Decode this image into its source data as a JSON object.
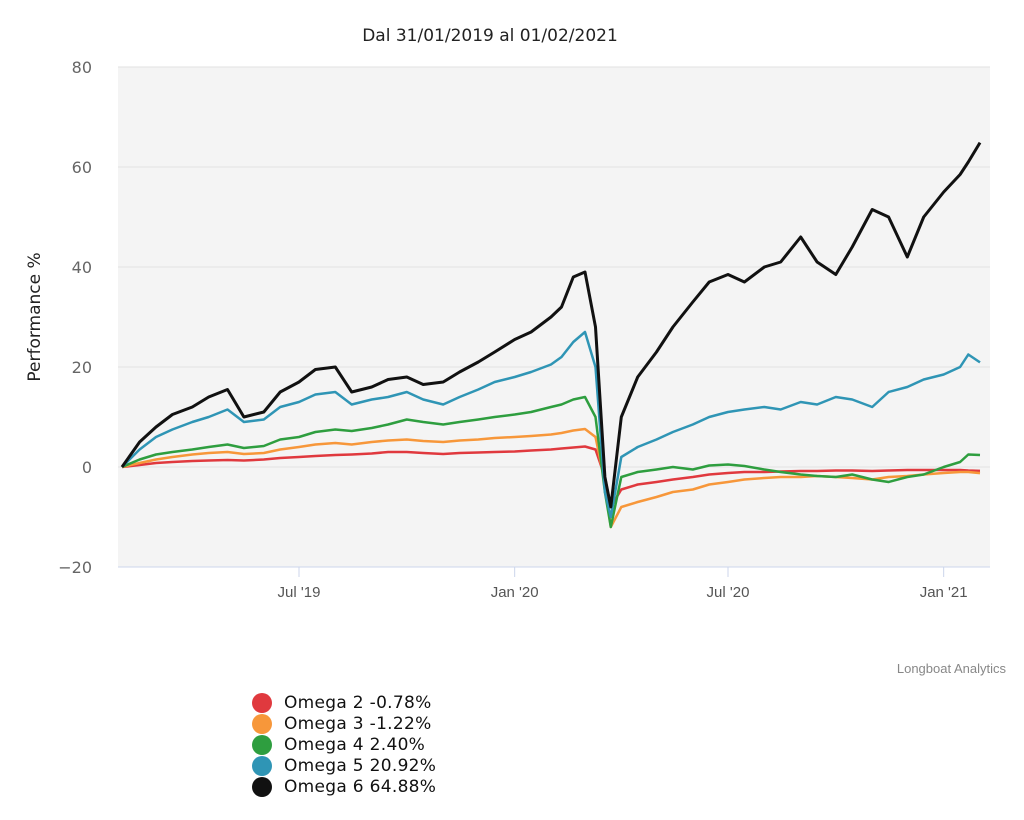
{
  "chart_data": {
    "type": "line",
    "title": "Dal 31/01/2019 al 01/02/2021",
    "xlabel": "",
    "ylabel": "Performance %",
    "ylim": [
      -20,
      80
    ],
    "yticks": [
      -20,
      0,
      20,
      40,
      60,
      80
    ],
    "ytick_labels": [
      "−20",
      "0",
      "20",
      "40",
      "60",
      "80"
    ],
    "xlim": [
      "2019-01-31",
      "2021-02-01"
    ],
    "xticks": [
      {
        "date": "2019-07-01",
        "label": "Jul '19"
      },
      {
        "date": "2020-01-01",
        "label": "Jan '20"
      },
      {
        "date": "2020-07-01",
        "label": "Jul '20"
      },
      {
        "date": "2021-01-01",
        "label": "Jan '21"
      }
    ],
    "grid": true,
    "legend_position": "bottom-left",
    "credit": "Longboat Analytics",
    "x": [
      "2019-01-31",
      "2019-02-15",
      "2019-03-01",
      "2019-03-15",
      "2019-04-01",
      "2019-04-15",
      "2019-05-01",
      "2019-05-15",
      "2019-06-01",
      "2019-06-15",
      "2019-07-01",
      "2019-07-15",
      "2019-08-01",
      "2019-08-15",
      "2019-09-01",
      "2019-09-15",
      "2019-10-01",
      "2019-10-15",
      "2019-11-01",
      "2019-11-15",
      "2019-12-01",
      "2019-12-15",
      "2020-01-01",
      "2020-01-15",
      "2020-02-01",
      "2020-02-10",
      "2020-02-20",
      "2020-03-01",
      "2020-03-10",
      "2020-03-18",
      "2020-03-23",
      "2020-04-01",
      "2020-04-15",
      "2020-05-01",
      "2020-05-15",
      "2020-06-01",
      "2020-06-15",
      "2020-07-01",
      "2020-07-15",
      "2020-08-01",
      "2020-08-15",
      "2020-09-01",
      "2020-09-15",
      "2020-10-01",
      "2020-10-15",
      "2020-11-01",
      "2020-11-15",
      "2020-12-01",
      "2020-12-15",
      "2021-01-01",
      "2021-01-15",
      "2021-01-22",
      "2021-02-01"
    ],
    "series": [
      {
        "name": "Omega 2",
        "label": "Omega 2 -0.78%",
        "color": "#e0393e",
        "values": [
          0,
          0.4,
          0.8,
          1.0,
          1.2,
          1.3,
          1.4,
          1.3,
          1.5,
          1.8,
          2.0,
          2.2,
          2.4,
          2.5,
          2.7,
          3.0,
          3.0,
          2.8,
          2.6,
          2.8,
          2.9,
          3.0,
          3.1,
          3.3,
          3.5,
          3.7,
          3.9,
          4.1,
          3.5,
          -2.0,
          -8.0,
          -4.5,
          -3.5,
          -3.0,
          -2.5,
          -2.0,
          -1.5,
          -1.2,
          -1.0,
          -1.0,
          -0.9,
          -0.8,
          -0.8,
          -0.7,
          -0.7,
          -0.8,
          -0.7,
          -0.6,
          -0.6,
          -0.6,
          -0.6,
          -0.7,
          -0.78
        ]
      },
      {
        "name": "Omega 3",
        "label": "Omega 3 -1.22%",
        "color": "#f7973a",
        "values": [
          0,
          0.8,
          1.5,
          2.0,
          2.5,
          2.8,
          3.0,
          2.6,
          2.8,
          3.5,
          4.0,
          4.5,
          4.8,
          4.5,
          5.0,
          5.3,
          5.5,
          5.2,
          5.0,
          5.3,
          5.5,
          5.8,
          6.0,
          6.2,
          6.5,
          6.8,
          7.3,
          7.6,
          6.0,
          -3.0,
          -12.0,
          -8.0,
          -7.0,
          -6.0,
          -5.0,
          -4.5,
          -3.5,
          -3.0,
          -2.5,
          -2.2,
          -2.0,
          -2.0,
          -1.8,
          -2.0,
          -2.2,
          -2.5,
          -2.0,
          -1.8,
          -1.5,
          -1.2,
          -1.0,
          -1.0,
          -1.22
        ]
      },
      {
        "name": "Omega 4",
        "label": "Omega 4 2.40%",
        "color": "#2e9e3f",
        "values": [
          0,
          1.5,
          2.5,
          3.0,
          3.5,
          4.0,
          4.5,
          3.8,
          4.2,
          5.5,
          6.0,
          7.0,
          7.5,
          7.2,
          7.8,
          8.5,
          9.5,
          9.0,
          8.5,
          9.0,
          9.5,
          10.0,
          10.5,
          11.0,
          12.0,
          12.5,
          13.5,
          14.0,
          10.0,
          -5.0,
          -12.0,
          -2.0,
          -1.0,
          -0.5,
          0,
          -0.5,
          0.3,
          0.5,
          0.2,
          -0.5,
          -1.0,
          -1.5,
          -1.8,
          -2.0,
          -1.5,
          -2.5,
          -3.0,
          -2.0,
          -1.5,
          0,
          1.0,
          2.5,
          2.4
        ]
      },
      {
        "name": "Omega 5",
        "label": "Omega 5 20.92%",
        "color": "#2f95b5",
        "values": [
          0,
          3.5,
          6.0,
          7.5,
          9.0,
          10.0,
          11.5,
          9.0,
          9.5,
          12.0,
          13.0,
          14.5,
          15.0,
          12.5,
          13.5,
          14.0,
          15.0,
          13.5,
          12.5,
          14.0,
          15.5,
          17.0,
          18.0,
          19.0,
          20.5,
          22.0,
          25.0,
          27.0,
          20.0,
          -5.0,
          -10.0,
          2.0,
          4.0,
          5.5,
          7.0,
          8.5,
          10.0,
          11.0,
          11.5,
          12.0,
          11.5,
          13.0,
          12.5,
          14.0,
          13.5,
          12.0,
          15.0,
          16.0,
          17.5,
          18.5,
          20.0,
          22.5,
          20.92
        ]
      },
      {
        "name": "Omega 6",
        "label": "Omega 6 64.88%",
        "color": "#111111",
        "values": [
          0,
          5.0,
          8.0,
          10.5,
          12.0,
          14.0,
          15.5,
          10.0,
          11.0,
          15.0,
          17.0,
          19.5,
          20.0,
          15.0,
          16.0,
          17.5,
          18.0,
          16.5,
          17.0,
          19.0,
          21.0,
          23.0,
          25.5,
          27.0,
          30.0,
          32.0,
          38.0,
          39.0,
          28.0,
          -2.0,
          -8.0,
          10.0,
          18.0,
          23.0,
          28.0,
          33.0,
          37.0,
          38.5,
          37.0,
          40.0,
          41.0,
          46.0,
          41.0,
          38.5,
          44.0,
          51.5,
          50.0,
          42.0,
          50.0,
          55.0,
          58.5,
          61.0,
          64.88
        ]
      }
    ]
  }
}
